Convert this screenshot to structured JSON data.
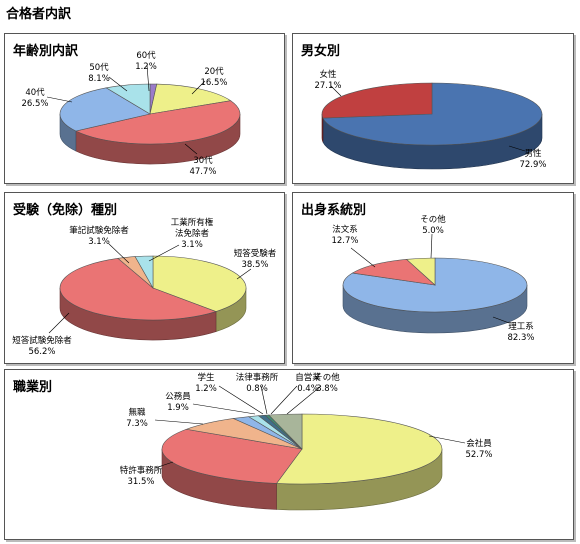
{
  "page_title": "合格者内訳",
  "chart_data": [
    {
      "id": "age",
      "type": "pie",
      "title": "年齢別内訳",
      "slices": [
        {
          "label": "60代",
          "value": 1.2,
          "value_label": "1.2%",
          "color": "#9b7cc9"
        },
        {
          "label": "20代",
          "value": 16.5,
          "value_label": "16.5%",
          "color": "#eef08a"
        },
        {
          "label": "30代",
          "value": 47.7,
          "value_label": "47.7%",
          "color": "#ea7474"
        },
        {
          "label": "40代",
          "value": 26.5,
          "value_label": "26.5%",
          "color": "#8fb6e8"
        },
        {
          "label": "50代",
          "value": 8.1,
          "value_label": "8.1%",
          "color": "#a9e2ea"
        }
      ]
    },
    {
      "id": "gender",
      "type": "pie",
      "title": "男女別",
      "slices": [
        {
          "label": "男性",
          "value": 72.9,
          "value_label": "72.9%",
          "color": "#4a74b0"
        },
        {
          "label": "女性",
          "value": 27.1,
          "value_label": "27.1%",
          "color": "#c04040"
        }
      ]
    },
    {
      "id": "exam",
      "type": "pie",
      "title": "受験（免除）種別",
      "slices": [
        {
          "label": "短答受験者",
          "value": 38.5,
          "value_label": "38.5%",
          "color": "#eef08a"
        },
        {
          "label": "短答試験免除者",
          "value": 56.2,
          "value_label": "56.2%",
          "color": "#ea7474"
        },
        {
          "label": "筆記試験免除者",
          "value": 3.1,
          "value_label": "3.1%",
          "color": "#f0b48c"
        },
        {
          "label": "工業所有権法免除者",
          "value": 3.1,
          "value_label": "3.1%",
          "color": "#a9e2ea"
        }
      ]
    },
    {
      "id": "field",
      "type": "pie",
      "title": "出身系統別",
      "slices": [
        {
          "label": "理工系",
          "value": 82.3,
          "value_label": "82.3%",
          "color": "#8fb6e8"
        },
        {
          "label": "法文系",
          "value": 12.7,
          "value_label": "12.7%",
          "color": "#ea7474"
        },
        {
          "label": "その他",
          "value": 5.0,
          "value_label": "5.0%",
          "color": "#eef08a"
        }
      ]
    },
    {
      "id": "occupation",
      "type": "pie",
      "title": "職業別",
      "slices": [
        {
          "label": "会社員",
          "value": 52.7,
          "value_label": "52.7%",
          "color": "#eef08a"
        },
        {
          "label": "特許事務所",
          "value": 31.5,
          "value_label": "31.5%",
          "color": "#ea7474"
        },
        {
          "label": "無職",
          "value": 7.3,
          "value_label": "7.3%",
          "color": "#f0b48c"
        },
        {
          "label": "公務員",
          "value": 1.9,
          "value_label": "1.9%",
          "color": "#8fb6e8"
        },
        {
          "label": "学生",
          "value": 1.2,
          "value_label": "1.2%",
          "color": "#a9e2ea"
        },
        {
          "label": "法律事務所",
          "value": 0.8,
          "value_label": "0.8%",
          "color": "#3f6f8a"
        },
        {
          "label": "自営業",
          "value": 0.4,
          "value_label": "0.4%",
          "color": "#3e8e73"
        },
        {
          "label": "その他",
          "value": 3.8,
          "value_label": "3.8%",
          "color": "#a8b59a"
        }
      ]
    }
  ]
}
